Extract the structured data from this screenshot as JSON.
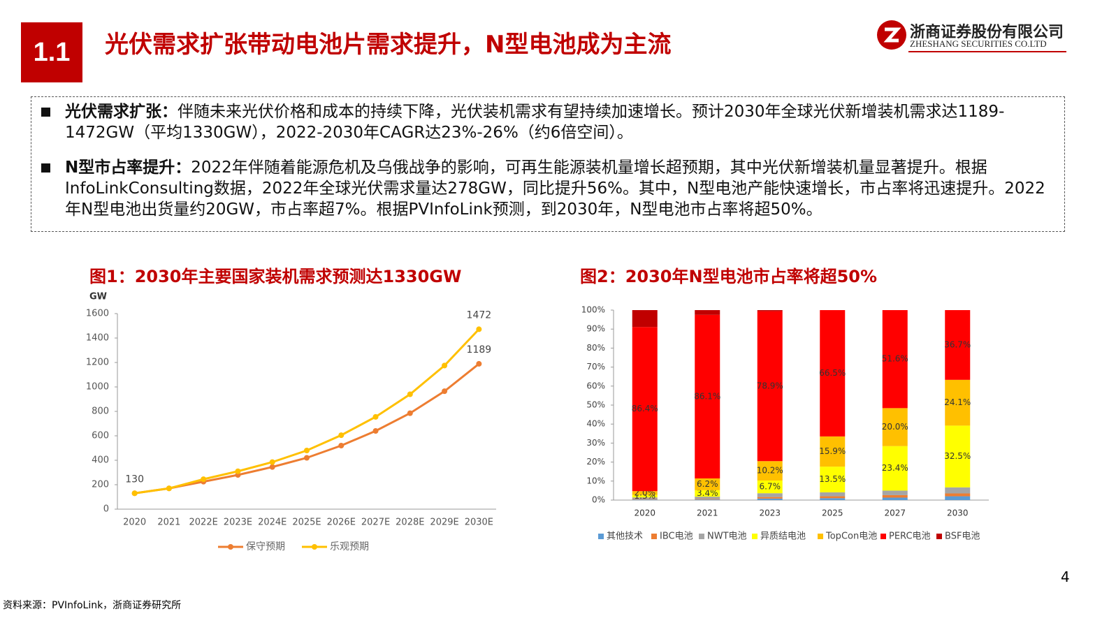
{
  "header": {
    "section": "1.1",
    "title": "光伏需求扩张带动电池片需求提升，N型电池成为主流",
    "company": "浙商证券股份有限公司",
    "company_en": "ZHESHANG SECURITIES CO.LTD"
  },
  "bullets": [
    {
      "lead": "光伏需求扩张：",
      "text": "伴随未来光伏价格和成本的持续下降，光伏装机需求有望持续加速增长。预计2030年全球光伏新增装机需求达1189-1472GW（平均1330GW），2022-2030年CAGR达23%-26%（约6倍空间）。"
    },
    {
      "lead": "N型市占率提升：",
      "text": "2022年伴随着能源危机及乌俄战争的影响，可再生能源装机量增长超预期，其中光伏新增装机量显著提升。根据InfoLinkConsulting数据，2022年全球光伏需求量达278GW，同比提升56%。其中，N型电池产能快速增长，市占率将迅速提升。2022年N型电池出货量约20GW，市占率超7%。根据PVInfoLink预测，到2030年，N型电池市占率将超50%。"
    }
  ],
  "chart_data": [
    {
      "type": "line",
      "title": "图1：2030年主要国家装机需求预测达1330GW",
      "y_unit": "GW",
      "categories": [
        "2020",
        "2021",
        "2022E",
        "2023E",
        "2024E",
        "2025E",
        "2026E",
        "2027E",
        "2028E",
        "2029E",
        "2030E"
      ],
      "series": [
        {
          "name": "保守预期",
          "color": "#ED7D31",
          "values": [
            130,
            170,
            225,
            280,
            345,
            420,
            520,
            640,
            785,
            965,
            1189
          ],
          "labeled_indices": [
            10
          ]
        },
        {
          "name": "乐观预期",
          "color": "#FFC000",
          "values": [
            130,
            170,
            245,
            310,
            385,
            480,
            605,
            755,
            940,
            1175,
            1472
          ],
          "labeled_indices": [
            0,
            10
          ]
        }
      ],
      "ylim": [
        0,
        1600
      ],
      "yticks": [
        0,
        200,
        400,
        600,
        800,
        1000,
        1200,
        1400,
        1600
      ],
      "legend": "bottom"
    },
    {
      "type": "stacked_bar",
      "title": "图2：2030年N型电池市占率将超50%",
      "categories": [
        "2020",
        "2021",
        "2023",
        "2025",
        "2027",
        "2030"
      ],
      "series": [
        {
          "name": "其他技术",
          "color": "#5B9BD5",
          "values": [
            0.3,
            0.3,
            0.8,
            1.0,
            1.3,
            2.0
          ]
        },
        {
          "name": "IBC电池",
          "color": "#ED7D31",
          "values": [
            0.3,
            0.3,
            0.8,
            1.0,
            1.3,
            1.5
          ]
        },
        {
          "name": "NWT电池",
          "color": "#A5A5A5",
          "values": [
            0.8,
            1.2,
            2.0,
            2.1,
            2.4,
            3.2
          ]
        },
        {
          "name": "异质结电池",
          "color": "#FFFF00",
          "values": [
            1.3,
            3.4,
            6.7,
            13.5,
            23.4,
            32.5
          ],
          "value_labels": [
            "1.3%",
            "3.4%",
            "6.7%",
            "13.5%",
            "23.4%",
            "32.5%"
          ]
        },
        {
          "name": "TopCon电池",
          "color": "#FFC000",
          "values": [
            2.0,
            6.2,
            10.2,
            15.9,
            20.0,
            24.1
          ],
          "value_labels": [
            "2.0%",
            "6.2%",
            "10.2%",
            "15.9%",
            "20.0%",
            "24.1%"
          ]
        },
        {
          "name": "PERC电池",
          "color": "#FF0000",
          "values": [
            86.4,
            86.1,
            78.9,
            66.5,
            51.6,
            36.7
          ],
          "value_labels": [
            "86.4%",
            "86.1%",
            "78.9%",
            "66.5%",
            "51.6%",
            "36.7%"
          ]
        },
        {
          "name": "BSF电池",
          "color": "#C00000",
          "values": [
            8.9,
            2.5,
            0.6,
            0,
            0,
            0
          ]
        }
      ],
      "ylim": [
        0,
        100
      ],
      "yticks": [
        {
          "value": 0,
          "label": "0%"
        },
        {
          "value": 10,
          "label": "10%"
        },
        {
          "value": 20,
          "label": "20%"
        },
        {
          "value": 30,
          "label": "30%"
        },
        {
          "value": 40,
          "label": "40%"
        },
        {
          "value": 50,
          "label": "50%"
        },
        {
          "value": 60,
          "label": "60%"
        },
        {
          "value": 70,
          "label": "70%"
        },
        {
          "value": 80,
          "label": "80%"
        },
        {
          "value": 90,
          "label": "90%"
        },
        {
          "value": 100,
          "label": "100%"
        }
      ],
      "legend": "bottom"
    }
  ],
  "page_number": "4",
  "source": "资料来源：PVInfoLink，浙商证券研究所"
}
